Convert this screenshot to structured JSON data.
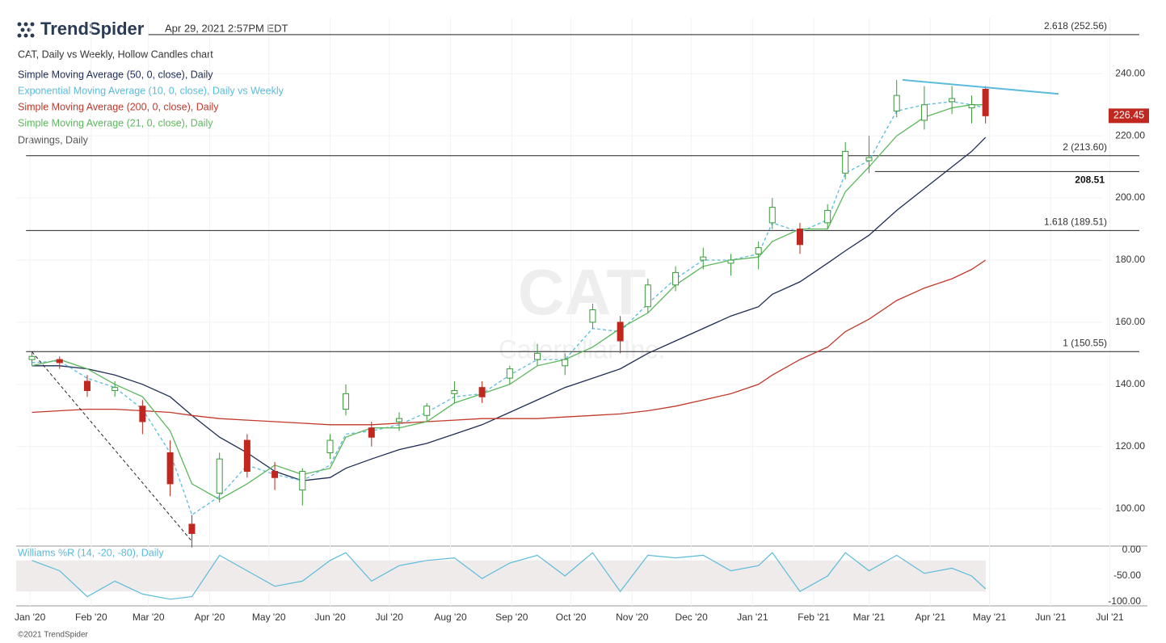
{
  "brand": "TrendSpider",
  "timestamp": "Apr 29, 2021 2:57PM EDT",
  "copyright": "©2021 TrendSpider",
  "chart_data": {
    "type": "candlestick",
    "title": "CAT, Daily vs Weekly, Hollow Candles chart",
    "watermark": "CAT",
    "watermark_subtitle": "Caterpillar Inc.",
    "drawings_label": "Drawings, Daily",
    "up_color": "#3a9a3a",
    "down_color": "#c0271f",
    "x": [
      "2020-01-02",
      "2020-01-16",
      "2020-01-30",
      "2020-02-13",
      "2020-02-27",
      "2020-03-12",
      "2020-03-23",
      "2020-04-06",
      "2020-04-20",
      "2020-05-04",
      "2020-05-18",
      "2020-06-01",
      "2020-06-09",
      "2020-06-22",
      "2020-07-06",
      "2020-07-20",
      "2020-08-03",
      "2020-08-17",
      "2020-08-31",
      "2020-09-14",
      "2020-09-28",
      "2020-10-12",
      "2020-10-26",
      "2020-11-09",
      "2020-11-23",
      "2020-12-07",
      "2020-12-21",
      "2021-01-04",
      "2021-01-11",
      "2021-01-25",
      "2021-02-08",
      "2021-02-17",
      "2021-03-01",
      "2021-03-15",
      "2021-03-29",
      "2021-04-12",
      "2021-04-22",
      "2021-04-29"
    ],
    "open": [
      148,
      148,
      141,
      138,
      133,
      118,
      95,
      105,
      122,
      112,
      106,
      118,
      132,
      126,
      128,
      130,
      137,
      139,
      142,
      148,
      146,
      160,
      160,
      165,
      172,
      180,
      179,
      182,
      192,
      190,
      192,
      208,
      212,
      228,
      225,
      231,
      229,
      235
    ],
    "high": [
      150.5,
      149,
      143,
      141,
      135,
      122,
      98,
      118,
      124,
      115,
      113,
      124,
      140,
      128,
      131,
      134,
      141,
      141,
      146,
      153,
      150,
      166,
      162,
      174,
      178,
      184,
      182,
      186,
      200,
      192,
      198,
      218,
      220,
      238,
      236,
      236,
      233,
      236
    ],
    "low": [
      146,
      145,
      136,
      136,
      124,
      104,
      87.5,
      102,
      110,
      106,
      101,
      116,
      130,
      120,
      125,
      128,
      134,
      134,
      140,
      146,
      143,
      158,
      150,
      163,
      170,
      177,
      175,
      177,
      190,
      182,
      190,
      206,
      208,
      226,
      222,
      227,
      224,
      224
    ],
    "close": [
      149,
      147,
      138,
      139,
      128,
      108,
      92,
      116,
      112,
      110,
      112,
      122,
      137,
      123,
      129,
      133,
      138,
      136,
      145,
      150,
      148,
      164,
      154,
      172,
      176,
      181,
      180,
      184,
      197,
      185,
      196,
      215,
      213,
      233,
      230,
      232,
      230,
      226.45
    ],
    "series": [
      {
        "name": "Simple Moving Average (50, 0, close), Daily",
        "color": "#1f2d55",
        "dash": false,
        "values": [
          146,
          146,
          145,
          143,
          140,
          136,
          130,
          123,
          118,
          112,
          109,
          110,
          113,
          116,
          119,
          121,
          124,
          127,
          131,
          135,
          139,
          142,
          145,
          150,
          154,
          158,
          162,
          165,
          169,
          173,
          179,
          183,
          188,
          196,
          203,
          210,
          215,
          219.5
        ]
      },
      {
        "name": "Exponential Moving Average (10, 0, close), Daily vs Weekly",
        "color": "#5bbbdc",
        "dash": true,
        "values": [
          147,
          147.5,
          142,
          139,
          132,
          118,
          98,
          104,
          114,
          111,
          109,
          114,
          124,
          125,
          127,
          131,
          136,
          137,
          143,
          148,
          148,
          158,
          157,
          166,
          174,
          180,
          180,
          182,
          192,
          189,
          193,
          208,
          212,
          228,
          230,
          231,
          230,
          229
        ]
      },
      {
        "name": "Simple Moving Average (200, 0, close), Daily",
        "color": "#c0392b",
        "dash": false,
        "values": [
          131,
          131.5,
          132,
          132,
          131.5,
          131,
          130,
          129,
          128.5,
          128,
          127.5,
          127,
          127,
          127,
          127.5,
          128,
          128.5,
          129,
          129,
          129,
          129.5,
          130,
          130.5,
          131.5,
          133,
          135,
          137,
          140,
          143,
          148,
          152,
          157,
          161,
          167,
          171,
          174,
          177,
          180
        ]
      },
      {
        "name": "Simple Moving Average (21, 0, close), Daily",
        "color": "#5cb85c",
        "dash": false,
        "values": [
          146,
          148,
          145,
          140,
          136,
          125,
          108,
          103,
          108,
          114,
          111,
          113,
          123,
          126,
          126,
          128,
          134,
          137,
          140,
          146,
          148,
          152,
          158,
          163,
          172,
          178,
          180,
          181,
          186,
          190,
          190,
          202,
          210,
          220,
          226,
          229,
          230,
          230
        ]
      }
    ],
    "ylim": [
      89,
      258
    ],
    "yticks": [
      {
        "value": 100,
        "label": "100.00"
      },
      {
        "value": 120,
        "label": "120.00"
      },
      {
        "value": 140,
        "label": "140.00"
      },
      {
        "value": 160,
        "label": "160.00"
      },
      {
        "value": 180,
        "label": "180.00"
      },
      {
        "value": 200,
        "label": "200.00"
      },
      {
        "value": 220,
        "label": "220.00"
      },
      {
        "value": 240,
        "label": "240.00"
      }
    ],
    "xlim": [
      "2019-12-25",
      "2021-07-20"
    ],
    "xticks": [
      {
        "value": "2020-01-01",
        "label": "Jan '20"
      },
      {
        "value": "2020-02-01",
        "label": "Feb '20"
      },
      {
        "value": "2020-03-01",
        "label": "Mar '20"
      },
      {
        "value": "2020-04-01",
        "label": "Apr '20"
      },
      {
        "value": "2020-05-01",
        "label": "May '20"
      },
      {
        "value": "2020-06-01",
        "label": "Jun '20"
      },
      {
        "value": "2020-07-01",
        "label": "Jul '20"
      },
      {
        "value": "2020-08-01",
        "label": "Aug '20"
      },
      {
        "value": "2020-09-01",
        "label": "Sep '20"
      },
      {
        "value": "2020-10-01",
        "label": "Oct '20"
      },
      {
        "value": "2020-11-01",
        "label": "Nov '20"
      },
      {
        "value": "2020-12-01",
        "label": "Dec '20"
      },
      {
        "value": "2021-01-01",
        "label": "Jan '21"
      },
      {
        "value": "2021-02-01",
        "label": "Feb '21"
      },
      {
        "value": "2021-03-01",
        "label": "Mar '21"
      },
      {
        "value": "2021-04-01",
        "label": "Apr '21"
      },
      {
        "value": "2021-05-01",
        "label": "May '21"
      },
      {
        "value": "2021-06-01",
        "label": "Jun '21"
      },
      {
        "value": "2021-07-01",
        "label": "Jul '21"
      }
    ],
    "grid": true,
    "levels": [
      {
        "value": 252.56,
        "label": "2.618 (252.56)",
        "from": "2020-03-01",
        "bold": false
      },
      {
        "value": 213.6,
        "label": "2 (213.60)",
        "from": "2019-12-30",
        "bold": false
      },
      {
        "value": 208.51,
        "label": "208.51",
        "from": "2021-03-04",
        "bold": true
      },
      {
        "value": 189.51,
        "label": "1.618 (189.51)",
        "from": "2019-12-30",
        "bold": false
      },
      {
        "value": 150.55,
        "label": "1 (150.55)",
        "from": "2019-12-30",
        "bold": false
      }
    ],
    "trendlines": [
      {
        "points": [
          [
            "2020-01-02",
            150.5
          ],
          [
            "2020-03-23",
            89.5
          ]
        ],
        "color": "#222222",
        "dash": true
      },
      {
        "points": [
          [
            "2021-03-18",
            238
          ],
          [
            "2021-06-05",
            233.5
          ]
        ],
        "color": "#5bbbdc",
        "dash": false
      }
    ],
    "indicator": {
      "name": "Williams %R (14, -20, -80), Daily",
      "color": "#5bbbdc",
      "band": [
        -20,
        -80
      ],
      "ylim": [
        -100,
        0
      ],
      "yticks": [
        {
          "value": 0,
          "label": "0.00"
        },
        {
          "value": -50,
          "label": "-50.00"
        },
        {
          "value": -100,
          "label": "-100.00"
        }
      ],
      "values": [
        -20,
        -40,
        -90,
        -60,
        -85,
        -95,
        -90,
        -10,
        -40,
        -70,
        -60,
        -20,
        -5,
        -60,
        -30,
        -20,
        -15,
        -55,
        -25,
        -10,
        -50,
        -5,
        -80,
        -10,
        -15,
        -10,
        -40,
        -30,
        -5,
        -80,
        -50,
        -5,
        -40,
        -10,
        -45,
        -35,
        -50,
        -75
      ]
    }
  }
}
